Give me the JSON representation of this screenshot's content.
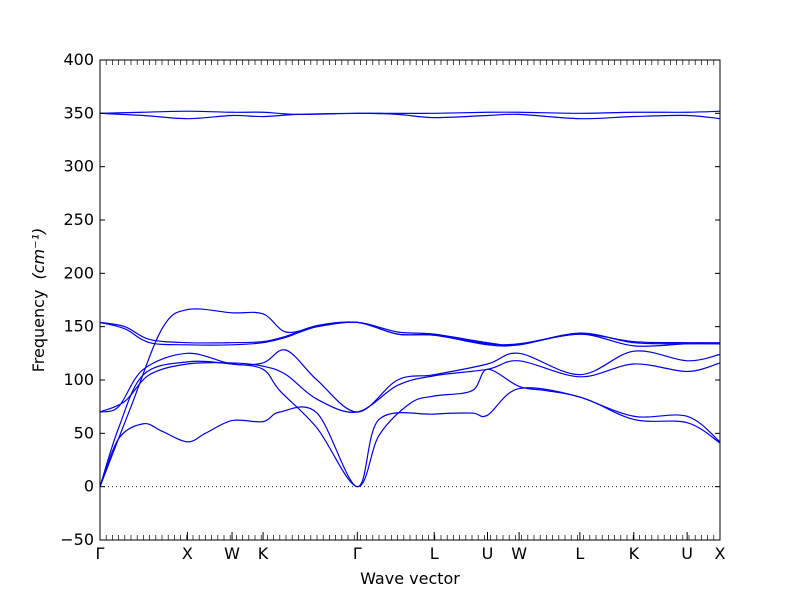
{
  "chart_data": {
    "type": "line",
    "title": "",
    "xlabel": "Wave vector",
    "ylabel": "Frequency",
    "ylabel_unit": "(cm⁻¹)",
    "ylim": [
      -50,
      400
    ],
    "yticks": [
      -50,
      0,
      50,
      100,
      150,
      200,
      250,
      300,
      350,
      400
    ],
    "xlim": [
      0,
      1
    ],
    "high_symmetry_points": [
      {
        "label": "Γ",
        "x": 0.0
      },
      {
        "label": "X",
        "x": 0.141
      },
      {
        "label": "W",
        "x": 0.213
      },
      {
        "label": "K",
        "x": 0.263
      },
      {
        "label": "Γ",
        "x": 0.415
      },
      {
        "label": "L",
        "x": 0.539
      },
      {
        "label": "U",
        "x": 0.625
      },
      {
        "label": "W",
        "x": 0.676
      },
      {
        "label": "L",
        "x": 0.774
      },
      {
        "label": "K",
        "x": 0.861
      },
      {
        "label": "U",
        "x": 0.947
      },
      {
        "label": "X",
        "x": 1.0
      }
    ],
    "zero_line": true,
    "line_color": "#0000ee",
    "series": [
      {
        "points": [
          [
            0,
            0
          ],
          [
            0.03,
            45
          ],
          [
            0.07,
            59
          ],
          [
            0.1,
            52
          ],
          [
            0.141,
            42
          ],
          [
            0.17,
            50
          ],
          [
            0.213,
            62
          ],
          [
            0.263,
            61
          ],
          [
            0.29,
            70
          ],
          [
            0.35,
            69
          ],
          [
            0.415,
            0
          ],
          [
            0.45,
            63
          ],
          [
            0.539,
            68
          ],
          [
            0.6,
            69
          ],
          [
            0.625,
            67
          ],
          [
            0.676,
            92
          ],
          [
            0.774,
            84
          ],
          [
            0.861,
            63
          ],
          [
            0.947,
            60
          ],
          [
            1.0,
            41
          ]
        ]
      },
      {
        "points": [
          [
            0,
            0
          ],
          [
            0.03,
            55
          ],
          [
            0.07,
            105
          ],
          [
            0.141,
            117
          ],
          [
            0.213,
            115
          ],
          [
            0.263,
            110
          ],
          [
            0.29,
            90
          ],
          [
            0.35,
            55
          ],
          [
            0.415,
            0
          ],
          [
            0.45,
            48
          ],
          [
            0.5,
            78
          ],
          [
            0.539,
            85
          ],
          [
            0.6,
            90
          ],
          [
            0.625,
            110
          ],
          [
            0.676,
            94
          ],
          [
            0.72,
            90
          ],
          [
            0.774,
            84
          ],
          [
            0.861,
            66
          ],
          [
            0.947,
            66
          ],
          [
            1.0,
            42
          ]
        ]
      },
      {
        "points": [
          [
            0,
            0
          ],
          [
            0.05,
            75
          ],
          [
            0.1,
            148
          ],
          [
            0.141,
            166
          ],
          [
            0.213,
            163
          ],
          [
            0.263,
            162
          ],
          [
            0.3,
            145
          ],
          [
            0.35,
            150
          ],
          [
            0.415,
            154
          ],
          [
            0.48,
            143
          ],
          [
            0.539,
            142
          ],
          [
            0.625,
            133
          ],
          [
            0.676,
            133
          ],
          [
            0.774,
            143
          ],
          [
            0.861,
            132
          ],
          [
            0.947,
            134
          ],
          [
            1.0,
            134
          ]
        ]
      },
      {
        "points": [
          [
            0,
            70
          ],
          [
            0.03,
            75
          ],
          [
            0.07,
            110
          ],
          [
            0.141,
            125
          ],
          [
            0.213,
            115
          ],
          [
            0.263,
            116
          ],
          [
            0.3,
            128
          ],
          [
            0.35,
            100
          ],
          [
            0.415,
            70
          ],
          [
            0.48,
            100
          ],
          [
            0.539,
            105
          ],
          [
            0.625,
            115
          ],
          [
            0.676,
            125
          ],
          [
            0.774,
            105
          ],
          [
            0.861,
            127
          ],
          [
            0.947,
            118
          ],
          [
            1.0,
            124
          ]
        ]
      },
      {
        "points": [
          [
            0,
            70
          ],
          [
            0.04,
            80
          ],
          [
            0.08,
            105
          ],
          [
            0.141,
            115
          ],
          [
            0.213,
            116
          ],
          [
            0.263,
            113
          ],
          [
            0.3,
            105
          ],
          [
            0.35,
            82
          ],
          [
            0.415,
            70
          ],
          [
            0.48,
            95
          ],
          [
            0.539,
            104
          ],
          [
            0.625,
            110
          ],
          [
            0.676,
            118
          ],
          [
            0.774,
            103
          ],
          [
            0.861,
            115
          ],
          [
            0.947,
            108
          ],
          [
            1.0,
            116
          ]
        ]
      },
      {
        "points": [
          [
            0,
            154
          ],
          [
            0.04,
            148
          ],
          [
            0.08,
            135
          ],
          [
            0.141,
            133
          ],
          [
            0.213,
            133
          ],
          [
            0.263,
            135
          ],
          [
            0.3,
            140
          ],
          [
            0.35,
            150
          ],
          [
            0.415,
            154
          ],
          [
            0.48,
            145
          ],
          [
            0.539,
            143
          ],
          [
            0.625,
            135
          ],
          [
            0.676,
            133
          ],
          [
            0.774,
            144
          ],
          [
            0.861,
            135
          ],
          [
            0.947,
            134
          ],
          [
            1.0,
            134
          ]
        ]
      },
      {
        "points": [
          [
            0,
            154
          ],
          [
            0.04,
            150
          ],
          [
            0.08,
            138
          ],
          [
            0.141,
            135
          ],
          [
            0.213,
            135
          ],
          [
            0.263,
            136
          ],
          [
            0.3,
            141
          ],
          [
            0.35,
            151
          ],
          [
            0.415,
            154
          ],
          [
            0.48,
            143
          ],
          [
            0.539,
            142
          ],
          [
            0.625,
            134
          ],
          [
            0.676,
            134
          ],
          [
            0.774,
            143
          ],
          [
            0.861,
            136
          ],
          [
            0.947,
            135
          ],
          [
            1.0,
            135
          ]
        ]
      },
      {
        "points": [
          [
            0,
            350
          ],
          [
            0.07,
            351
          ],
          [
            0.141,
            352
          ],
          [
            0.213,
            351
          ],
          [
            0.263,
            351
          ],
          [
            0.32,
            349
          ],
          [
            0.415,
            350
          ],
          [
            0.48,
            350
          ],
          [
            0.539,
            350
          ],
          [
            0.625,
            351
          ],
          [
            0.676,
            351
          ],
          [
            0.774,
            350
          ],
          [
            0.861,
            351
          ],
          [
            0.947,
            351
          ],
          [
            1.0,
            352
          ]
        ]
      },
      {
        "points": [
          [
            0,
            350
          ],
          [
            0.07,
            348
          ],
          [
            0.141,
            345
          ],
          [
            0.213,
            348
          ],
          [
            0.263,
            347
          ],
          [
            0.32,
            349
          ],
          [
            0.415,
            350
          ],
          [
            0.48,
            349
          ],
          [
            0.539,
            346
          ],
          [
            0.625,
            348
          ],
          [
            0.676,
            349
          ],
          [
            0.774,
            345
          ],
          [
            0.861,
            347
          ],
          [
            0.947,
            348
          ],
          [
            1.0,
            345
          ]
        ]
      }
    ]
  }
}
